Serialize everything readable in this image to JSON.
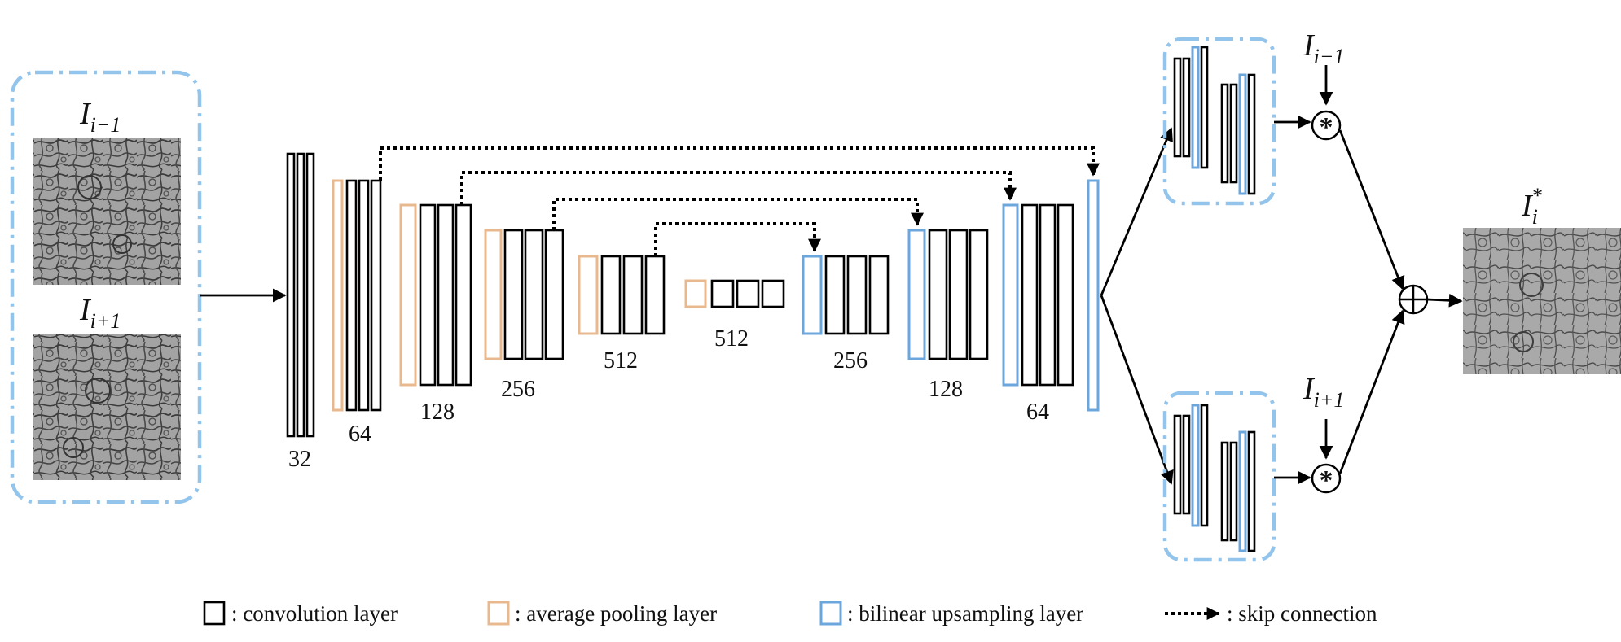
{
  "inputs": {
    "top_label_base": "I",
    "top_label_sub": "i−1",
    "bottom_label_base": "I",
    "bottom_label_sub": "i+1"
  },
  "encoder_channels": [
    "32",
    "64",
    "128",
    "256",
    "512",
    "512"
  ],
  "decoder_channels": [
    "256",
    "128",
    "64"
  ],
  "branches": {
    "top_label_base": "I",
    "top_label_sub": "i−1",
    "bottom_label_base": "I",
    "bottom_label_sub": "i+1",
    "conv_op_symbol": "*",
    "sum_symbol": "⊕"
  },
  "output": {
    "label_base": "I",
    "label_sub": "i",
    "label_sup": "*"
  },
  "legend": {
    "conv": ": convolution layer",
    "pool": ": average pooling layer",
    "up": ": bilinear upsampling layer",
    "skip": ": skip connection"
  },
  "colors": {
    "conv": "#000000",
    "pool": "#e8b98e",
    "up": "#6ba7dd",
    "dashed_box": "#93c4ec",
    "image_bg": "#9a9a9a"
  },
  "icons": {
    "conv_op": "asterisk-circle-icon",
    "sum": "circled-plus-icon"
  }
}
